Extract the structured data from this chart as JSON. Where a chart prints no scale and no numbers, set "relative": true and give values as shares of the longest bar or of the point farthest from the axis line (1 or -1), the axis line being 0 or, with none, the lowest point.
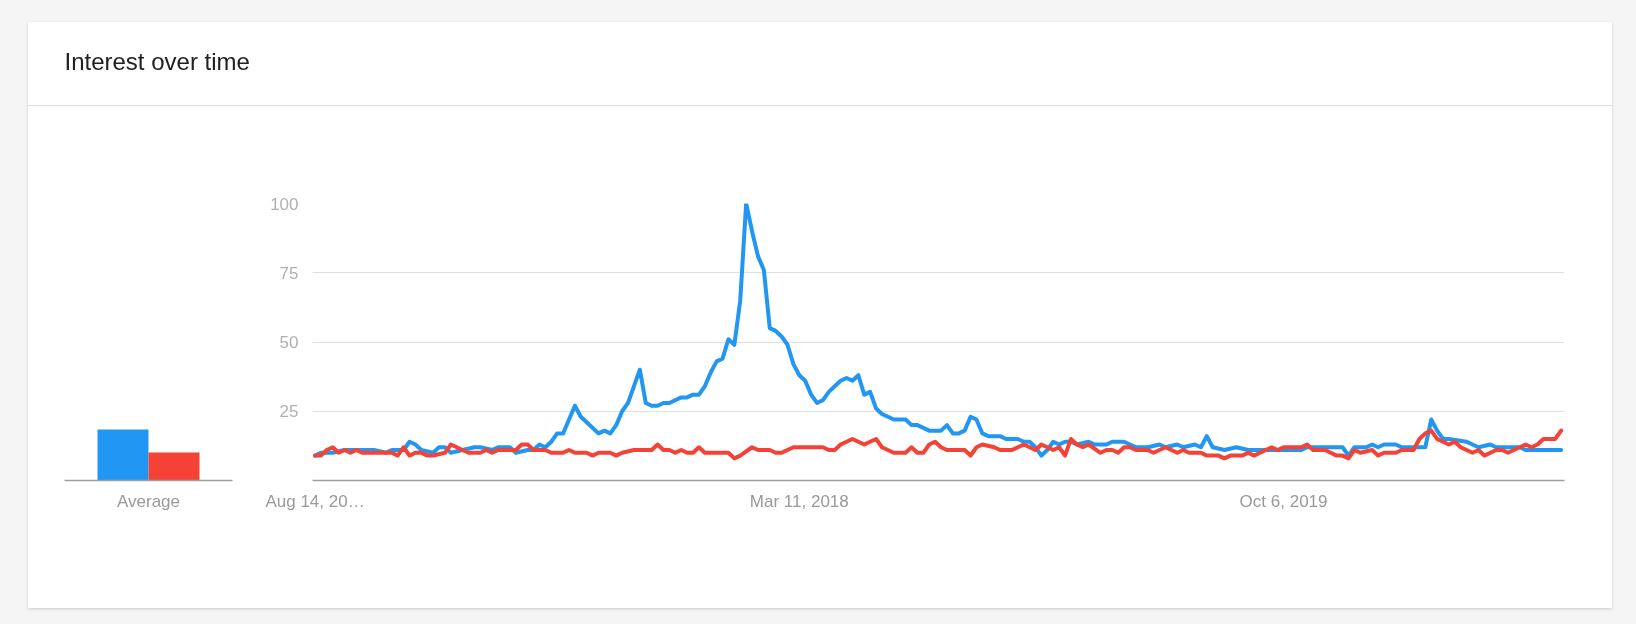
{
  "chart_data": [
    {
      "type": "bar",
      "title": "Interest over time",
      "categories": [
        "Average"
      ],
      "relative": true,
      "series": [
        {
          "color": "#2196f3",
          "values": [
            1
          ]
        },
        {
          "color": "#f44336",
          "values": [
            0.55
          ]
        }
      ]
    },
    {
      "type": "line",
      "xlim": [
        "2016-08-11",
        "2020-09-03"
      ],
      "ylim": [
        0,
        100
      ],
      "xticks": [
        {
          "value": "2016-08-14",
          "label": "Aug 14, 20…"
        },
        {
          "value": "2018-03-11",
          "label": "Mar 11, 2018"
        },
        {
          "value": "2019-10-06",
          "label": "Oct 6, 2019"
        }
      ],
      "yticks": [
        25,
        50,
        75,
        100
      ],
      "grid": "y",
      "series": [
        {
          "color": "#2196f3",
          "x": [
            "2016-08-14",
            "2016-08-21",
            "2016-09-04",
            "2016-09-18",
            "2016-10-09",
            "2016-10-23",
            "2016-11-06",
            "2016-11-13",
            "2016-11-27",
            "2016-12-04",
            "2016-12-11",
            "2016-12-18",
            "2017-01-01",
            "2017-01-08",
            "2017-01-15",
            "2017-01-22",
            "2017-02-05",
            "2017-02-19",
            "2017-02-26",
            "2017-03-12",
            "2017-03-19",
            "2017-04-02",
            "2017-04-09",
            "2017-04-23",
            "2017-04-30",
            "2017-05-07",
            "2017-05-14",
            "2017-05-21",
            "2017-05-28",
            "2017-06-04",
            "2017-06-18",
            "2017-06-25",
            "2017-07-16",
            "2017-07-23",
            "2017-07-30",
            "2017-08-06",
            "2017-08-13",
            "2017-08-20",
            "2017-09-03",
            "2017-09-10",
            "2017-09-17",
            "2017-09-24",
            "2017-10-01",
            "2017-10-08",
            "2017-10-22",
            "2017-10-29",
            "2017-11-05",
            "2017-11-12",
            "2017-11-19",
            "2017-11-26",
            "2017-12-03",
            "2017-12-10",
            "2017-12-17",
            "2017-12-24",
            "2017-12-31",
            "2018-01-07",
            "2018-01-14",
            "2018-01-21",
            "2018-01-28",
            "2018-02-04",
            "2018-02-11",
            "2018-02-18",
            "2018-02-25",
            "2018-03-04",
            "2018-03-11",
            "2018-03-18",
            "2018-03-25",
            "2018-04-01",
            "2018-04-08",
            "2018-04-15",
            "2018-04-22",
            "2018-04-29",
            "2018-05-06",
            "2018-05-13",
            "2018-05-20",
            "2018-05-27",
            "2018-06-03",
            "2018-06-10",
            "2018-06-17",
            "2018-06-24",
            "2018-07-01",
            "2018-07-15",
            "2018-07-22",
            "2018-07-29",
            "2018-08-05",
            "2018-08-12",
            "2018-08-26",
            "2018-09-02",
            "2018-09-09",
            "2018-09-16",
            "2018-09-23",
            "2018-09-30",
            "2018-10-07",
            "2018-10-14",
            "2018-10-21",
            "2018-11-04",
            "2018-11-11",
            "2018-11-25",
            "2018-12-02",
            "2018-12-09",
            "2018-12-16",
            "2018-12-23",
            "2018-12-30",
            "2019-01-06",
            "2019-01-13",
            "2019-01-20",
            "2019-01-27",
            "2019-02-03",
            "2019-02-17",
            "2019-02-24",
            "2019-03-10",
            "2019-03-17",
            "2019-03-31",
            "2019-04-14",
            "2019-04-28",
            "2019-05-12",
            "2019-05-19",
            "2019-06-02",
            "2019-06-09",
            "2019-06-23",
            "2019-06-30",
            "2019-07-07",
            "2019-07-14",
            "2019-07-28",
            "2019-08-11",
            "2019-08-25",
            "2019-10-27",
            "2019-11-03",
            "2019-12-15",
            "2019-12-22",
            "2019-12-29",
            "2020-01-12",
            "2020-01-19",
            "2020-01-26",
            "2020-02-02",
            "2020-02-16",
            "2020-02-23",
            "2020-03-22",
            "2020-03-29",
            "2020-04-05",
            "2020-04-12",
            "2020-04-19",
            "2020-05-10",
            "2020-05-17",
            "2020-05-24",
            "2020-06-07",
            "2020-06-14",
            "2020-07-12",
            "2020-07-19",
            "2020-08-30"
          ],
          "values": [
            9,
            10,
            10,
            11,
            11,
            11,
            10,
            11,
            11,
            14,
            13,
            11,
            10,
            12,
            12,
            10,
            11,
            12,
            12,
            11,
            12,
            12,
            10,
            11,
            11,
            13,
            12,
            14,
            17,
            17,
            27,
            23,
            17,
            18,
            17,
            20,
            25,
            28,
            40,
            28,
            27,
            27,
            28,
            28,
            30,
            30,
            31,
            31,
            34,
            39,
            43,
            44,
            51,
            49,
            65,
            100,
            90,
            81,
            76,
            55,
            54,
            52,
            49,
            42,
            38,
            36,
            31,
            28,
            29,
            32,
            34,
            36,
            37,
            36,
            38,
            31,
            32,
            26,
            24,
            23,
            22,
            22,
            20,
            20,
            19,
            18,
            18,
            20,
            17,
            17,
            18,
            23,
            22,
            17,
            16,
            16,
            15,
            15,
            14,
            14,
            12,
            9,
            11,
            14,
            13,
            14,
            14,
            13,
            14,
            13,
            13,
            14,
            14,
            12,
            12,
            13,
            12,
            13,
            12,
            13,
            12,
            16,
            12,
            11,
            12,
            11,
            11,
            12,
            12,
            9,
            12,
            12,
            13,
            12,
            13,
            13,
            12,
            12,
            22,
            18,
            15,
            15,
            14,
            13,
            12,
            13,
            12,
            12,
            11,
            11
          ]
        },
        {
          "color": "#f44336",
          "x": [
            "2016-08-14",
            "2016-08-21",
            "2016-08-28",
            "2016-09-04",
            "2016-09-11",
            "2016-09-18",
            "2016-09-25",
            "2016-10-02",
            "2016-10-09",
            "2016-11-13",
            "2016-11-20",
            "2016-11-27",
            "2016-12-04",
            "2016-12-11",
            "2016-12-18",
            "2016-12-25",
            "2017-01-01",
            "2017-01-15",
            "2017-01-22",
            "2017-02-05",
            "2017-02-12",
            "2017-02-26",
            "2017-03-05",
            "2017-03-12",
            "2017-03-19",
            "2017-04-09",
            "2017-04-16",
            "2017-04-23",
            "2017-04-30",
            "2017-05-14",
            "2017-05-21",
            "2017-06-04",
            "2017-06-11",
            "2017-06-18",
            "2017-07-02",
            "2017-07-09",
            "2017-07-16",
            "2017-07-30",
            "2017-08-06",
            "2017-08-13",
            "2017-08-27",
            "2017-09-17",
            "2017-09-24",
            "2017-10-01",
            "2017-10-08",
            "2017-10-15",
            "2017-10-22",
            "2017-10-29",
            "2017-11-05",
            "2017-11-12",
            "2017-11-19",
            "2017-12-17",
            "2017-12-24",
            "2017-12-31",
            "2018-01-14",
            "2018-01-21",
            "2018-02-04",
            "2018-02-11",
            "2018-02-18",
            "2018-03-04",
            "2018-04-08",
            "2018-04-15",
            "2018-04-22",
            "2018-04-29",
            "2018-05-13",
            "2018-05-27",
            "2018-06-10",
            "2018-06-17",
            "2018-07-01",
            "2018-07-15",
            "2018-07-22",
            "2018-07-29",
            "2018-08-05",
            "2018-08-12",
            "2018-08-19",
            "2018-08-26",
            "2018-09-02",
            "2018-09-23",
            "2018-09-30",
            "2018-10-07",
            "2018-10-14",
            "2018-10-28",
            "2018-11-04",
            "2018-11-18",
            "2018-12-02",
            "2018-12-16",
            "2018-12-23",
            "2019-01-06",
            "2019-01-13",
            "2019-01-20",
            "2019-01-27",
            "2019-02-03",
            "2019-02-10",
            "2019-02-17",
            "2019-03-03",
            "2019-03-10",
            "2019-03-17",
            "2019-03-24",
            "2019-03-31",
            "2019-04-07",
            "2019-04-14",
            "2019-04-28",
            "2019-05-05",
            "2019-05-19",
            "2019-06-02",
            "2019-06-09",
            "2019-06-16",
            "2019-06-30",
            "2019-07-07",
            "2019-07-21",
            "2019-07-28",
            "2019-08-04",
            "2019-08-18",
            "2019-08-25",
            "2019-09-01",
            "2019-09-15",
            "2019-09-22",
            "2019-09-29",
            "2019-10-06",
            "2019-10-27",
            "2019-11-03",
            "2019-11-10",
            "2019-11-24",
            "2019-12-08",
            "2019-12-15",
            "2019-12-22",
            "2019-12-29",
            "2020-01-05",
            "2020-01-19",
            "2020-01-26",
            "2020-02-02",
            "2020-02-16",
            "2020-02-23",
            "2020-03-08",
            "2020-03-15",
            "2020-03-22",
            "2020-03-29",
            "2020-04-05",
            "2020-04-19",
            "2020-04-26",
            "2020-05-03",
            "2020-05-17",
            "2020-05-24",
            "2020-05-31",
            "2020-06-14",
            "2020-06-21",
            "2020-06-28",
            "2020-07-12",
            "2020-07-19",
            "2020-07-26",
            "2020-08-02",
            "2020-08-09",
            "2020-08-23",
            "2020-08-30"
          ],
          "values": [
            9,
            9,
            11,
            12,
            10,
            11,
            10,
            11,
            10,
            10,
            9,
            12,
            9,
            10,
            10,
            9,
            9,
            10,
            13,
            11,
            10,
            10,
            11,
            10,
            11,
            11,
            13,
            13,
            11,
            11,
            10,
            10,
            11,
            10,
            10,
            9,
            10,
            10,
            9,
            10,
            11,
            11,
            13,
            11,
            11,
            10,
            11,
            10,
            10,
            12,
            10,
            10,
            8,
            9,
            12,
            11,
            11,
            10,
            10,
            12,
            12,
            11,
            11,
            13,
            15,
            13,
            15,
            12,
            10,
            10,
            12,
            10,
            10,
            13,
            14,
            12,
            11,
            11,
            9,
            12,
            13,
            12,
            11,
            11,
            13,
            11,
            13,
            11,
            12,
            9,
            15,
            13,
            12,
            13,
            10,
            11,
            11,
            10,
            12,
            12,
            11,
            11,
            10,
            12,
            10,
            11,
            10,
            10,
            9,
            9,
            8,
            9,
            9,
            10,
            9,
            11,
            12,
            11,
            12,
            12,
            13,
            11,
            11,
            9,
            9,
            8,
            11,
            10,
            11,
            9,
            10,
            10,
            11,
            11,
            15,
            17,
            18,
            15,
            13,
            14,
            12,
            10,
            11,
            9,
            11,
            11,
            10,
            12,
            13,
            12,
            13,
            15,
            15,
            18
          ]
        }
      ]
    }
  ]
}
